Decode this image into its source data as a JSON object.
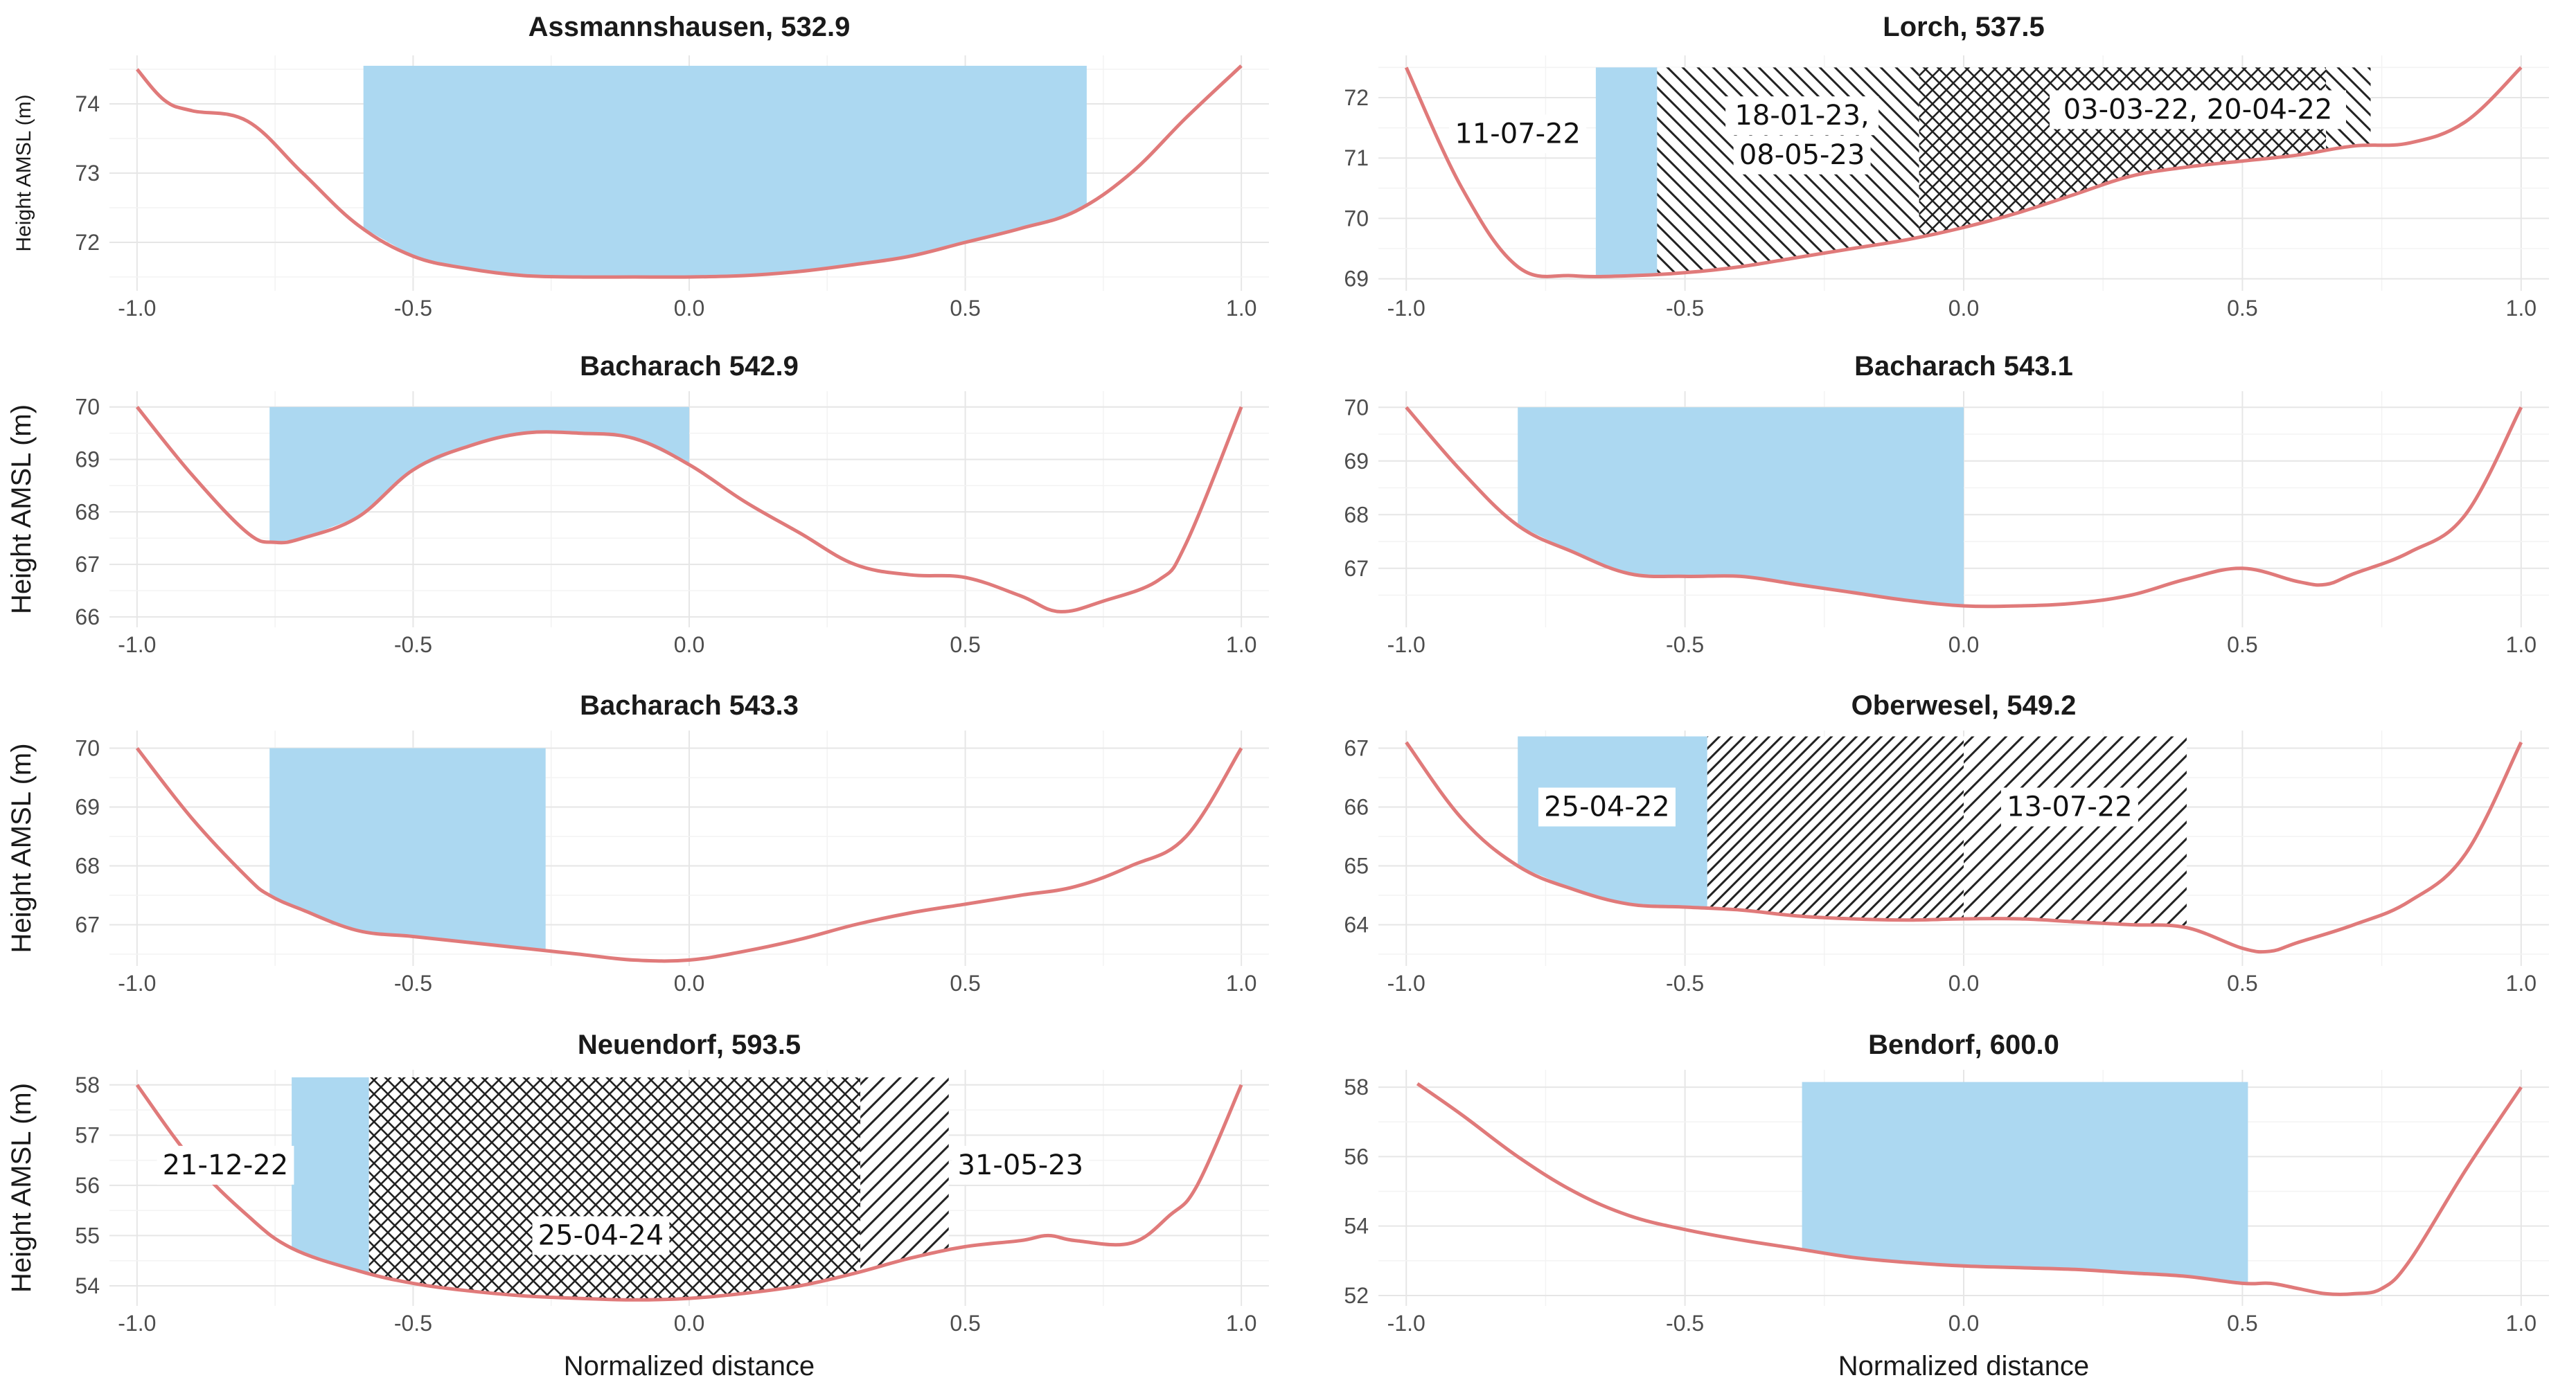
{
  "figure": {
    "xlabel": "Normalized distance",
    "ylabel": "Height AMSL (m)",
    "colors": {
      "profile": "#e07a7a",
      "wetted_area": "#acd8f1",
      "hatch": "#222222",
      "grid": "#e6e6e6"
    }
  },
  "chart_data": [
    {
      "type": "area",
      "title": "Assmannshausen, 532.9",
      "ylabel": "Height AMSL (m)",
      "xlabel": "",
      "xlim": [
        -1.05,
        1.05
      ],
      "ylim": [
        71.3,
        74.7
      ],
      "xticks": [
        -1.0,
        -0.5,
        0.0,
        0.5,
        1.0
      ],
      "xtick_labels": [
        "-1.0",
        "-0.5",
        "0.0",
        "0.5",
        "1.0"
      ],
      "yticks": [
        72,
        73,
        74
      ],
      "ytick_labels": [
        "72",
        "73",
        "74"
      ],
      "profile": {
        "x": [
          -1.0,
          -0.95,
          -0.9,
          -0.8,
          -0.7,
          -0.6,
          -0.5,
          -0.4,
          -0.3,
          -0.2,
          -0.1,
          0.0,
          0.1,
          0.2,
          0.3,
          0.4,
          0.5,
          0.6,
          0.7,
          0.8,
          0.9,
          1.0
        ],
        "y": [
          74.5,
          74.05,
          73.9,
          73.75,
          73.0,
          72.25,
          71.8,
          71.62,
          71.52,
          71.5,
          71.5,
          71.5,
          71.52,
          71.58,
          71.68,
          71.8,
          72.0,
          72.2,
          72.45,
          73.0,
          73.8,
          74.55
        ]
      },
      "regions": [
        {
          "type": "fill",
          "x0": -0.59,
          "x1": 0.72,
          "top": 74.55,
          "label": ""
        }
      ]
    },
    {
      "type": "area",
      "title": "Lorch, 537.5",
      "ylabel": "",
      "xlabel": "",
      "xlim": [
        -1.05,
        1.05
      ],
      "ylim": [
        68.8,
        72.7
      ],
      "xticks": [
        -1.0,
        -0.5,
        0.0,
        0.5,
        1.0
      ],
      "xtick_labels": [
        "-1.0",
        "-0.5",
        "0.0",
        "0.5",
        "1.0"
      ],
      "yticks": [
        69,
        70,
        71,
        72
      ],
      "ytick_labels": [
        "69",
        "70",
        "71",
        "72"
      ],
      "profile": {
        "x": [
          -1.0,
          -0.9,
          -0.8,
          -0.7,
          -0.6,
          -0.5,
          -0.4,
          -0.3,
          -0.2,
          -0.1,
          0.0,
          0.1,
          0.2,
          0.3,
          0.4,
          0.5,
          0.6,
          0.7,
          0.8,
          0.9,
          1.0
        ],
        "y": [
          72.5,
          70.5,
          69.2,
          69.05,
          69.05,
          69.1,
          69.2,
          69.35,
          69.5,
          69.65,
          69.85,
          70.1,
          70.4,
          70.7,
          70.85,
          70.95,
          71.05,
          71.2,
          71.25,
          71.6,
          72.5
        ]
      },
      "regions": [
        {
          "type": "fill",
          "x0": -0.66,
          "x1": -0.55,
          "top": 72.5,
          "label": "11-07-22"
        },
        {
          "type": "hatch",
          "direction": "back",
          "x0": -0.55,
          "x1": -0.08,
          "top": 72.5,
          "label": "18-01-23,\n08-05-23"
        },
        {
          "type": "cross",
          "x0": -0.08,
          "x1": 0.65,
          "top": 72.5,
          "label": "03-03-22, 20-04-22"
        },
        {
          "type": "hatch",
          "direction": "back",
          "x0": 0.65,
          "x1": 0.73,
          "top": 72.5,
          "label": ""
        }
      ],
      "annotations": [
        {
          "text": "11-07-22",
          "x": -0.8,
          "y": 71.4
        },
        {
          "text": "18-01-23,",
          "x": -0.29,
          "y": 71.7
        },
        {
          "text": "08-05-23",
          "x": -0.29,
          "y": 71.05
        },
        {
          "text": "03-03-22, 20-04-22",
          "x": 0.42,
          "y": 71.8
        }
      ]
    },
    {
      "type": "area",
      "title": "Bacharach 542.9",
      "ylabel": "Height AMSL (m)",
      "xlabel": "",
      "xlim": [
        -1.05,
        1.05
      ],
      "ylim": [
        65.8,
        70.3
      ],
      "xticks": [
        -1.0,
        -0.5,
        0.0,
        0.5,
        1.0
      ],
      "xtick_labels": [
        "-1.0",
        "-0.5",
        "0.0",
        "0.5",
        "1.0"
      ],
      "yticks": [
        66,
        67,
        68,
        69,
        70
      ],
      "ytick_labels": [
        "66",
        "67",
        "68",
        "69",
        "70"
      ],
      "profile": {
        "x": [
          -1.0,
          -0.9,
          -0.8,
          -0.75,
          -0.7,
          -0.6,
          -0.5,
          -0.4,
          -0.3,
          -0.2,
          -0.1,
          0.0,
          0.1,
          0.2,
          0.3,
          0.4,
          0.5,
          0.6,
          0.67,
          0.75,
          0.85,
          0.9,
          1.0
        ],
        "y": [
          70.0,
          68.7,
          67.6,
          67.42,
          67.5,
          67.9,
          68.8,
          69.25,
          69.5,
          69.5,
          69.4,
          68.9,
          68.2,
          67.6,
          67.0,
          66.8,
          66.75,
          66.4,
          66.1,
          66.3,
          66.7,
          67.4,
          70.0
        ]
      },
      "regions": [
        {
          "type": "fill",
          "x0": -0.76,
          "x1": 0.0,
          "top": 70.0,
          "label": ""
        }
      ]
    },
    {
      "type": "area",
      "title": "Bacharach 543.1",
      "ylabel": "",
      "xlabel": "",
      "xlim": [
        -1.05,
        1.05
      ],
      "ylim": [
        65.9,
        70.3
      ],
      "xticks": [
        -1.0,
        -0.5,
        0.0,
        0.5,
        1.0
      ],
      "xtick_labels": [
        "-1.0",
        "-0.5",
        "0.0",
        "0.5",
        "1.0"
      ],
      "yticks": [
        67,
        68,
        69,
        70
      ],
      "ytick_labels": [
        "67",
        "68",
        "69",
        "70"
      ],
      "profile": {
        "x": [
          -1.0,
          -0.9,
          -0.8,
          -0.7,
          -0.6,
          -0.5,
          -0.4,
          -0.3,
          -0.2,
          -0.1,
          0.0,
          0.1,
          0.2,
          0.3,
          0.4,
          0.5,
          0.6,
          0.65,
          0.7,
          0.8,
          0.9,
          1.0
        ],
        "y": [
          70.0,
          68.8,
          67.8,
          67.3,
          66.9,
          66.85,
          66.85,
          66.7,
          66.55,
          66.4,
          66.3,
          66.3,
          66.35,
          66.5,
          66.8,
          67.0,
          66.75,
          66.7,
          66.9,
          67.3,
          68.0,
          70.0
        ]
      },
      "regions": [
        {
          "type": "fill",
          "x0": -0.8,
          "x1": 0.0,
          "top": 70.0,
          "label": ""
        }
      ]
    },
    {
      "type": "area",
      "title": "Bacharach 543.3",
      "ylabel": "Height AMSL (m)",
      "xlabel": "",
      "xlim": [
        -1.05,
        1.05
      ],
      "ylim": [
        66.3,
        70.3
      ],
      "xticks": [
        -1.0,
        -0.5,
        0.0,
        0.5,
        1.0
      ],
      "xtick_labels": [
        "-1.0",
        "-0.5",
        "0.0",
        "0.5",
        "1.0"
      ],
      "yticks": [
        67,
        68,
        69,
        70
      ],
      "ytick_labels": [
        "67",
        "68",
        "69",
        "70"
      ],
      "profile": {
        "x": [
          -1.0,
          -0.9,
          -0.8,
          -0.76,
          -0.7,
          -0.6,
          -0.5,
          -0.4,
          -0.3,
          -0.2,
          -0.1,
          0.0,
          0.1,
          0.2,
          0.3,
          0.4,
          0.5,
          0.6,
          0.7,
          0.8,
          0.9,
          1.0
        ],
        "y": [
          70.0,
          68.8,
          67.8,
          67.5,
          67.25,
          66.9,
          66.8,
          66.7,
          66.6,
          66.5,
          66.4,
          66.4,
          66.55,
          66.75,
          67.0,
          67.2,
          67.35,
          67.5,
          67.65,
          68.0,
          68.5,
          70.0
        ]
      },
      "regions": [
        {
          "type": "fill",
          "x0": -0.76,
          "x1": -0.26,
          "top": 70.0,
          "label": ""
        }
      ]
    },
    {
      "type": "area",
      "title": "Oberwesel, 549.2",
      "ylabel": "",
      "xlabel": "",
      "xlim": [
        -1.05,
        1.05
      ],
      "ylim": [
        63.3,
        67.3
      ],
      "xticks": [
        -1.0,
        -0.5,
        0.0,
        0.5,
        1.0
      ],
      "xtick_labels": [
        "-1.0",
        "-0.5",
        "0.0",
        "0.5",
        "1.0"
      ],
      "yticks": [
        64,
        65,
        66,
        67
      ],
      "ytick_labels": [
        "64",
        "65",
        "66",
        "67"
      ],
      "profile": {
        "x": [
          -1.0,
          -0.9,
          -0.8,
          -0.7,
          -0.6,
          -0.5,
          -0.4,
          -0.3,
          -0.2,
          -0.1,
          0.0,
          0.1,
          0.2,
          0.3,
          0.4,
          0.5,
          0.55,
          0.6,
          0.7,
          0.8,
          0.9,
          1.0
        ],
        "y": [
          67.1,
          65.8,
          65.0,
          64.6,
          64.35,
          64.3,
          64.25,
          64.15,
          64.1,
          64.08,
          64.1,
          64.1,
          64.05,
          64.0,
          63.95,
          63.6,
          63.55,
          63.7,
          64.0,
          64.4,
          65.2,
          67.1
        ]
      },
      "regions": [
        {
          "type": "fill",
          "x0": -0.8,
          "x1": -0.46,
          "top": 67.2,
          "label": "25-04-22"
        },
        {
          "type": "hatch",
          "direction": "forward",
          "dense": true,
          "x0": -0.46,
          "x1": 0.0,
          "top": 67.2,
          "label": ""
        },
        {
          "type": "hatch",
          "direction": "forward",
          "x0": 0.0,
          "x1": 0.4,
          "top": 67.2,
          "label": "13-07-22"
        }
      ],
      "annotations": [
        {
          "text": "25-04-22",
          "x": -0.64,
          "y": 66.0
        },
        {
          "text": "13-07-22",
          "x": 0.19,
          "y": 66.0
        }
      ]
    },
    {
      "type": "area",
      "title": "Neuendorf, 593.5",
      "ylabel": "Height AMSL (m)",
      "xlabel": "Normalized distance",
      "xlim": [
        -1.05,
        1.05
      ],
      "ylim": [
        53.6,
        58.3
      ],
      "xticks": [
        -1.0,
        -0.5,
        0.0,
        0.5,
        1.0
      ],
      "xtick_labels": [
        "-1.0",
        "-0.5",
        "0.0",
        "0.5",
        "1.0"
      ],
      "yticks": [
        54,
        55,
        56,
        57,
        58
      ],
      "ytick_labels": [
        "54",
        "55",
        "56",
        "57",
        "58"
      ],
      "profile": {
        "x": [
          -1.0,
          -0.9,
          -0.8,
          -0.72,
          -0.6,
          -0.5,
          -0.4,
          -0.3,
          -0.2,
          -0.1,
          0.0,
          0.1,
          0.2,
          0.3,
          0.4,
          0.5,
          0.6,
          0.65,
          0.7,
          0.8,
          0.87,
          0.92,
          1.0
        ],
        "y": [
          58.0,
          56.5,
          55.4,
          54.75,
          54.3,
          54.05,
          53.9,
          53.8,
          53.75,
          53.72,
          53.75,
          53.85,
          54.0,
          54.25,
          54.55,
          54.78,
          54.9,
          55.0,
          54.9,
          54.85,
          55.4,
          56.0,
          58.0
        ]
      },
      "regions": [
        {
          "type": "fill",
          "x0": -0.72,
          "x1": -0.58,
          "top": 58.15,
          "label": "21-12-22"
        },
        {
          "type": "cross",
          "x0": -0.58,
          "x1": 0.31,
          "top": 58.15,
          "label": "25-04-24"
        },
        {
          "type": "hatch",
          "direction": "forward",
          "x0": 0.31,
          "x1": 0.47,
          "top": 58.15,
          "label": "31-05-23"
        }
      ],
      "annotations": [
        {
          "text": "21-12-22",
          "x": -0.84,
          "y": 56.4
        },
        {
          "text": "25-04-24",
          "x": -0.16,
          "y": 55.0
        },
        {
          "text": "31-05-23",
          "x": 0.6,
          "y": 56.4
        }
      ]
    },
    {
      "type": "area",
      "title": "Bendorf, 600.0",
      "ylabel": "",
      "xlabel": "Normalized distance",
      "xlim": [
        -1.05,
        1.05
      ],
      "ylim": [
        51.7,
        58.5
      ],
      "xticks": [
        -1.0,
        -0.5,
        0.0,
        0.5,
        1.0
      ],
      "xtick_labels": [
        "-1.0",
        "-0.5",
        "0.0",
        "0.5",
        "1.0"
      ],
      "yticks": [
        52,
        54,
        56,
        58
      ],
      "ytick_labels": [
        "52",
        "54",
        "56",
        "58"
      ],
      "profile": {
        "x": [
          -0.98,
          -0.9,
          -0.8,
          -0.7,
          -0.6,
          -0.5,
          -0.4,
          -0.3,
          -0.2,
          -0.1,
          0.0,
          0.1,
          0.2,
          0.3,
          0.4,
          0.5,
          0.55,
          0.6,
          0.65,
          0.7,
          0.75,
          0.8,
          0.9,
          1.0
        ],
        "y": [
          58.1,
          57.2,
          56.0,
          55.0,
          54.3,
          53.9,
          53.6,
          53.35,
          53.1,
          52.95,
          52.85,
          52.8,
          52.75,
          52.65,
          52.55,
          52.35,
          52.35,
          52.2,
          52.05,
          52.05,
          52.2,
          53.0,
          55.6,
          58.0
        ]
      },
      "regions": [
        {
          "type": "fill",
          "x0": -0.29,
          "x1": 0.51,
          "top": 58.15,
          "label": ""
        }
      ]
    }
  ]
}
